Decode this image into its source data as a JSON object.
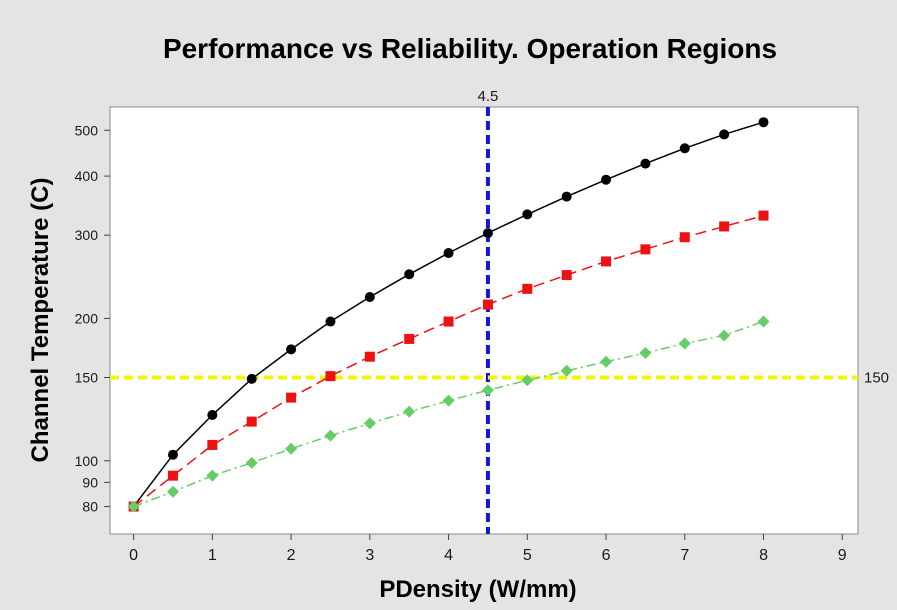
{
  "chart_data": {
    "type": "line",
    "title": "Performance vs Reliability. Operation Regions",
    "xlabel": "PDensity (W/mm)",
    "ylabel": "Channel Temperature (C)",
    "xlim": [
      -0.3,
      9.2
    ],
    "ylim": [
      70,
      560
    ],
    "yscale": "log",
    "x_ticks": [
      0,
      1,
      2,
      3,
      4,
      5,
      6,
      7,
      8,
      9
    ],
    "y_ticks": [
      80,
      90,
      100,
      150,
      200,
      300,
      400,
      500
    ],
    "legend": "none",
    "grid": false,
    "x": [
      0,
      0.5,
      1,
      1.5,
      2,
      2.5,
      3,
      3.5,
      4,
      4.5,
      5,
      5.5,
      6,
      6.5,
      7,
      7.5,
      8
    ],
    "series": [
      {
        "color": "#000000",
        "marker": "circle",
        "line_style": "solid",
        "values": [
          80,
          103,
          125,
          149,
          172,
          197,
          222,
          248,
          275,
          303,
          332,
          362,
          393,
          425,
          458,
          490,
          520
        ]
      },
      {
        "color": "#ee1111",
        "marker": "square",
        "line_style": "dashed",
        "values": [
          80,
          93,
          108,
          121,
          136,
          151,
          166,
          181,
          197,
          214,
          231,
          247,
          264,
          280,
          297,
          313,
          330
        ]
      },
      {
        "color": "#66cc66",
        "marker": "diamond",
        "line_style": "dashdot",
        "values": [
          80,
          86,
          93,
          99,
          106,
          113,
          120,
          127,
          134,
          141,
          148,
          155,
          162,
          169,
          177,
          184,
          197
        ]
      }
    ],
    "reference_lines": [
      {
        "orientation": "vertical",
        "value": 4.5,
        "label": "4.5",
        "color": "#1515d6"
      },
      {
        "orientation": "horizontal",
        "value": 150,
        "label": "150",
        "color": "#f5f500"
      }
    ]
  }
}
